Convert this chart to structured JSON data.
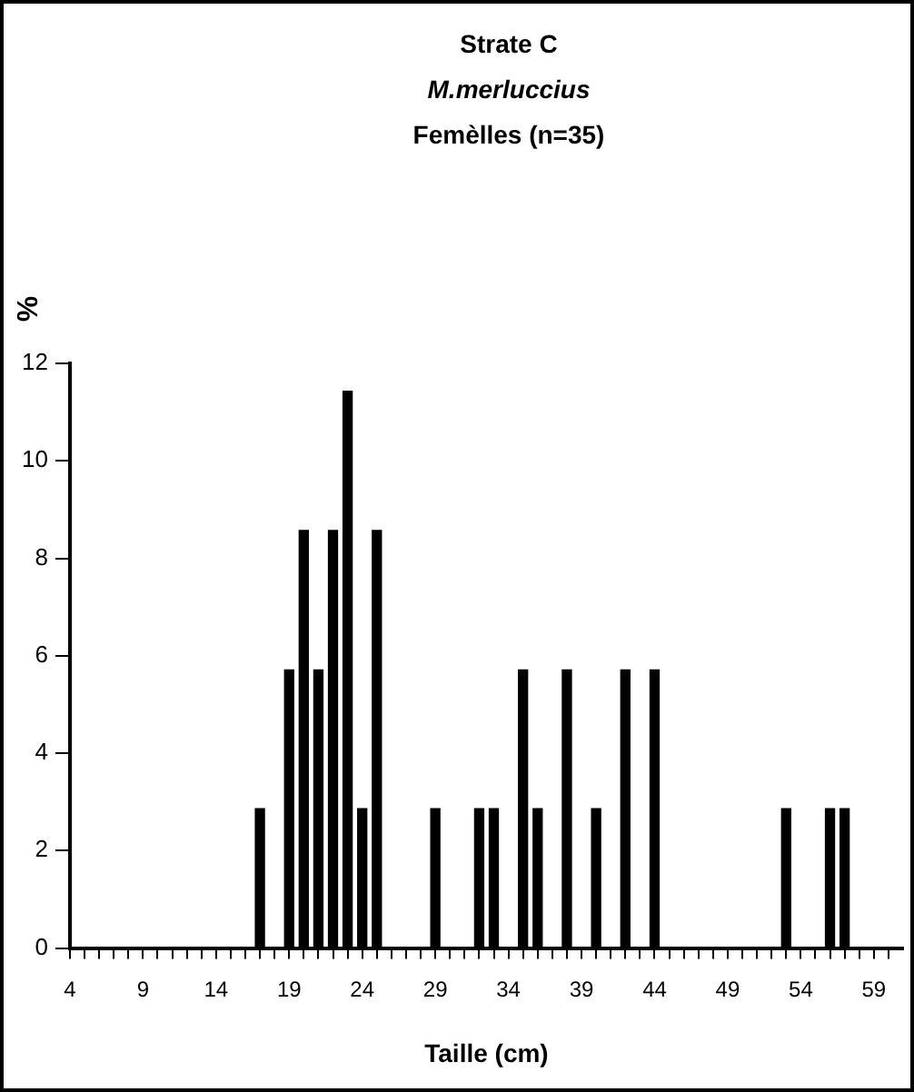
{
  "chart_data": {
    "type": "bar",
    "title": "Strate C",
    "subtitle": "M.merluccius",
    "annotations": [
      "Femèlles (n=35)"
    ],
    "xlabel": "Taille (cm)",
    "ylabel": "%",
    "x": [
      17,
      19,
      20,
      21,
      22,
      23,
      24,
      25,
      29,
      32,
      33,
      35,
      36,
      38,
      40,
      42,
      44,
      53,
      56,
      57
    ],
    "values": [
      2.86,
      5.71,
      8.57,
      5.71,
      8.57,
      11.43,
      2.86,
      8.57,
      2.86,
      2.86,
      2.86,
      5.71,
      2.86,
      5.71,
      2.86,
      5.71,
      5.71,
      2.86,
      2.86,
      2.86
    ],
    "color": "#000000",
    "xlim": [
      4,
      61
    ],
    "xticks": [
      4,
      {
        "value": 5,
        "label": null
      },
      {
        "value": 6,
        "label": null
      },
      {
        "value": 7,
        "label": null
      },
      {
        "value": 8,
        "label": null
      },
      9,
      {
        "value": 10,
        "label": null
      },
      {
        "value": 11,
        "label": null
      },
      {
        "value": 12,
        "label": null
      },
      {
        "value": 13,
        "label": null
      },
      14,
      {
        "value": 15,
        "label": null
      },
      {
        "value": 16,
        "label": null
      },
      {
        "value": 17,
        "label": null
      },
      {
        "value": 18,
        "label": null
      },
      19,
      {
        "value": 20,
        "label": null
      },
      {
        "value": 21,
        "label": null
      },
      {
        "value": 22,
        "label": null
      },
      {
        "value": 23,
        "label": null
      },
      24,
      {
        "value": 25,
        "label": null
      },
      {
        "value": 26,
        "label": null
      },
      {
        "value": 27,
        "label": null
      },
      {
        "value": 28,
        "label": null
      },
      29,
      {
        "value": 30,
        "label": null
      },
      {
        "value": 31,
        "label": null
      },
      {
        "value": 32,
        "label": null
      },
      {
        "value": 33,
        "label": null
      },
      34,
      {
        "value": 35,
        "label": null
      },
      {
        "value": 36,
        "label": null
      },
      {
        "value": 37,
        "label": null
      },
      {
        "value": 38,
        "label": null
      },
      39,
      {
        "value": 40,
        "label": null
      },
      {
        "value": 41,
        "label": null
      },
      {
        "value": 42,
        "label": null
      },
      {
        "value": 43,
        "label": null
      },
      44,
      {
        "value": 45,
        "label": null
      },
      {
        "value": 46,
        "label": null
      },
      {
        "value": 47,
        "label": null
      },
      {
        "value": 48,
        "label": null
      },
      49,
      {
        "value": 50,
        "label": null
      },
      {
        "value": 51,
        "label": null
      },
      {
        "value": 52,
        "label": null
      },
      {
        "value": 53,
        "label": null
      },
      54,
      {
        "value": 55,
        "label": null
      },
      {
        "value": 56,
        "label": null
      },
      {
        "value": 57,
        "label": null
      },
      {
        "value": 58,
        "label": null
      },
      59,
      {
        "value": 60,
        "label": null
      }
    ],
    "ylim": [
      0,
      12
    ],
    "yticks": [
      0,
      2,
      4,
      6,
      8,
      10,
      12
    ],
    "grid": false,
    "legend": false
  }
}
